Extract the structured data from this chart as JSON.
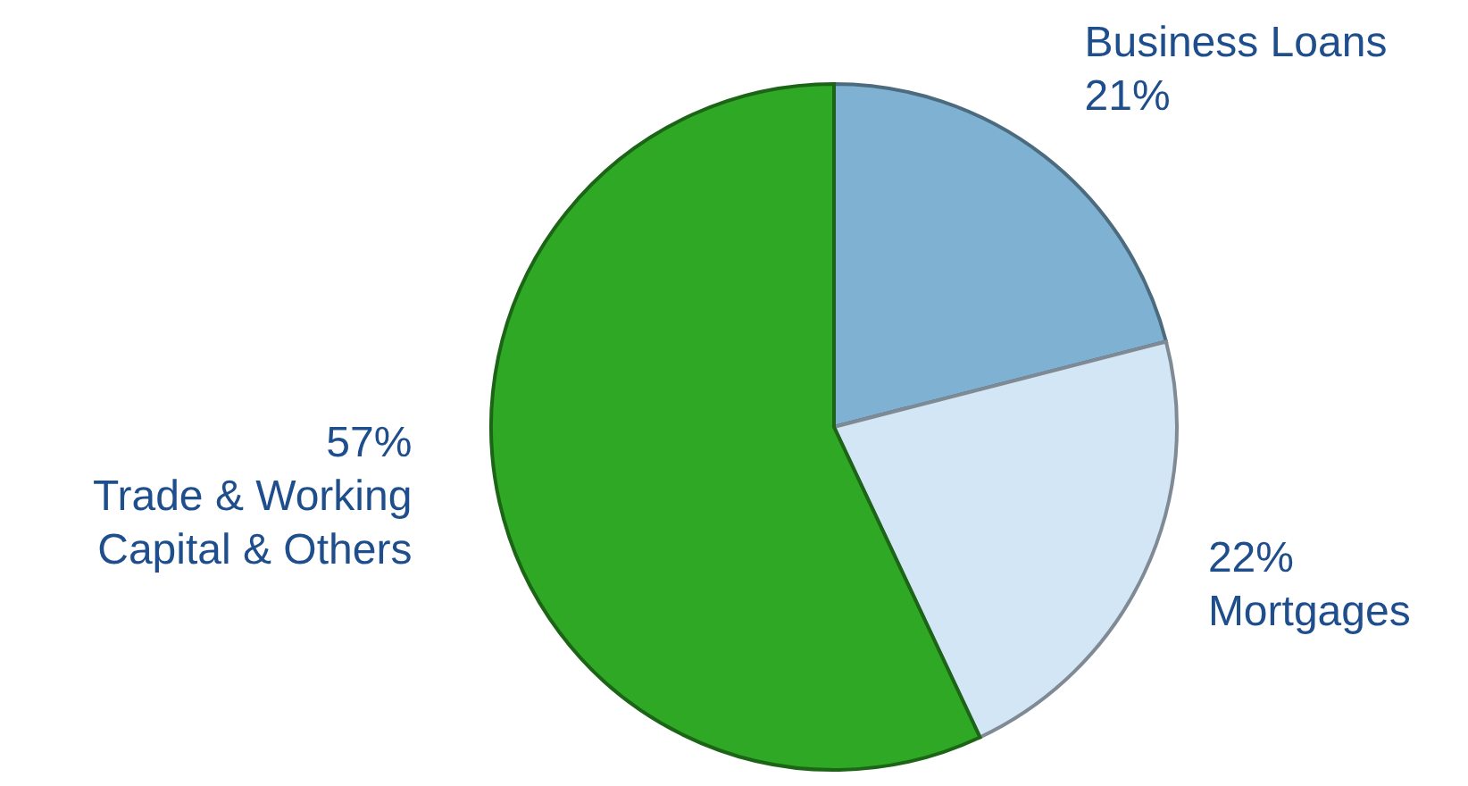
{
  "chart_data": {
    "type": "pie",
    "categories": [
      "Business Loans",
      "Mortgages",
      "Trade & Working Capital & Others"
    ],
    "values": [
      21,
      22,
      57
    ],
    "colors": [
      "#7fb2d2",
      "#d3e6f6",
      "#2fa826"
    ],
    "value_labels": [
      "21%",
      "22%",
      "57%"
    ]
  }
}
